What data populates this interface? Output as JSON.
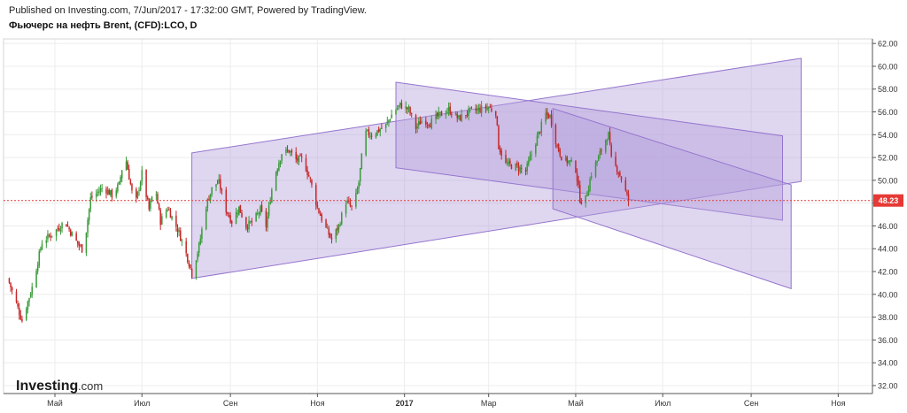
{
  "header": {
    "published": "Published on Investing.com, 7/Jun/2017 - 17:32:00 GMT, Powered by TradingView.",
    "title": "Фьючерс на нефть Brent, (CFD):LCO, D"
  },
  "watermark": {
    "brand": "Investing",
    "suffix": ".com"
  },
  "colors": {
    "up": "#3a9a3a",
    "down": "#c62828",
    "channel_line": "#9575cd",
    "channel_fill": "#b39ddb",
    "last_price": "#e53935",
    "grid": "#ececec",
    "axis": "#555555"
  },
  "chart_data": {
    "type": "candlestick",
    "title": "Фьючерс на нефть Brent, (CFD):LCO, D",
    "x_ticks": [
      "Май",
      "Июл",
      "Сен",
      "Ноя",
      "2017",
      "Мар",
      "Май",
      "Июл",
      "Сен",
      "Ноя"
    ],
    "y_ticks": [
      "32.00",
      "34.00",
      "36.00",
      "38.00",
      "40.00",
      "42.00",
      "44.00",
      "46.00",
      "48.00",
      "50.00",
      "52.00",
      "54.00",
      "56.00",
      "58.00",
      "60.00",
      "62.00"
    ],
    "ylim": [
      31.3,
      62.4
    ],
    "xlim": [
      "2016-03-26",
      "2017-11-25"
    ],
    "last_price": "48.23",
    "grid": true,
    "path": [
      [
        "2016-03-29",
        41.4
      ],
      [
        "2016-04-08",
        37.7
      ],
      [
        "2016-04-15",
        40.6
      ],
      [
        "2016-04-22",
        44.6
      ],
      [
        "2016-05-01",
        45.5
      ],
      [
        "2016-05-08",
        46.4
      ],
      [
        "2016-05-15",
        44.8
      ],
      [
        "2016-05-21",
        43.8
      ],
      [
        "2016-05-26",
        48.4
      ],
      [
        "2016-06-04",
        49.4
      ],
      [
        "2016-06-10",
        48.7
      ],
      [
        "2016-06-15",
        49.6
      ],
      [
        "2016-06-19",
        52.4
      ],
      [
        "2016-06-21",
        51.0
      ],
      [
        "2016-06-26",
        47.6
      ],
      [
        "2016-07-01",
        50.6
      ],
      [
        "2016-07-06",
        47.4
      ],
      [
        "2016-07-10",
        49.6
      ],
      [
        "2016-07-14",
        46.4
      ],
      [
        "2016-07-19",
        47.6
      ],
      [
        "2016-07-27",
        45.4
      ],
      [
        "2016-08-03",
        42.8
      ],
      [
        "2016-08-05",
        41.8
      ],
      [
        "2016-08-10",
        44.2
      ],
      [
        "2016-08-15",
        47.8
      ],
      [
        "2016-08-20",
        49.6
      ],
      [
        "2016-08-24",
        49.8
      ],
      [
        "2016-08-29",
        47.4
      ],
      [
        "2016-09-02",
        46.4
      ],
      [
        "2016-09-07",
        47.6
      ],
      [
        "2016-09-12",
        46.0
      ],
      [
        "2016-09-17",
        46.4
      ],
      [
        "2016-09-22",
        47.4
      ],
      [
        "2016-09-26",
        46.0
      ],
      [
        "2016-10-01",
        50.0
      ],
      [
        "2016-10-07",
        52.4
      ],
      [
        "2016-10-12",
        52.6
      ],
      [
        "2016-10-17",
        51.8
      ],
      [
        "2016-10-22",
        51.8
      ],
      [
        "2016-10-27",
        50.0
      ],
      [
        "2016-11-01",
        47.6
      ],
      [
        "2016-11-06",
        46.0
      ],
      [
        "2016-11-11",
        44.8
      ],
      [
        "2016-11-16",
        46.0
      ],
      [
        "2016-11-21",
        48.2
      ],
      [
        "2016-11-26",
        47.4
      ],
      [
        "2016-11-30",
        49.8
      ],
      [
        "2016-12-04",
        54.2
      ],
      [
        "2016-12-09",
        54.0
      ],
      [
        "2016-12-14",
        54.4
      ],
      [
        "2016-12-19",
        54.8
      ],
      [
        "2016-12-24",
        56.0
      ],
      [
        "2016-12-29",
        56.6
      ],
      [
        "2017-01-04",
        56.2
      ],
      [
        "2017-01-09",
        54.6
      ],
      [
        "2017-01-14",
        55.4
      ],
      [
        "2017-01-19",
        55.0
      ],
      [
        "2017-01-24",
        55.6
      ],
      [
        "2017-02-01",
        56.2
      ],
      [
        "2017-02-08",
        55.4
      ],
      [
        "2017-02-15",
        56.0
      ],
      [
        "2017-02-22",
        56.2
      ],
      [
        "2017-03-01",
        56.4
      ],
      [
        "2017-03-06",
        56.0
      ],
      [
        "2017-03-08",
        53.0
      ],
      [
        "2017-03-13",
        51.4
      ],
      [
        "2017-03-20",
        51.2
      ],
      [
        "2017-03-27",
        50.8
      ],
      [
        "2017-04-03",
        53.4
      ],
      [
        "2017-04-10",
        55.8
      ],
      [
        "2017-04-13",
        55.6
      ],
      [
        "2017-04-18",
        53.0
      ],
      [
        "2017-04-22",
        51.8
      ],
      [
        "2017-04-27",
        51.6
      ],
      [
        "2017-05-01",
        51.0
      ],
      [
        "2017-05-04",
        48.4
      ],
      [
        "2017-05-07",
        47.8
      ],
      [
        "2017-05-12",
        50.6
      ],
      [
        "2017-05-17",
        52.0
      ],
      [
        "2017-05-22",
        53.6
      ],
      [
        "2017-05-24",
        54.0
      ],
      [
        "2017-05-26",
        51.8
      ],
      [
        "2017-05-31",
        50.8
      ],
      [
        "2017-06-03",
        49.8
      ],
      [
        "2017-06-07",
        48.2
      ]
    ],
    "channels": [
      {
        "poly": [
          [
            "2016-08-05",
            52.4
          ],
          [
            "2017-10-06",
            60.7
          ],
          [
            "2017-10-06",
            49.9
          ],
          [
            "2016-08-05",
            41.4
          ]
        ]
      },
      {
        "poly": [
          [
            "2016-12-26",
            58.6
          ],
          [
            "2017-09-23",
            53.9
          ],
          [
            "2017-09-23",
            46.5
          ],
          [
            "2016-12-26",
            51.1
          ]
        ]
      },
      {
        "poly": [
          [
            "2017-04-15",
            56.3
          ],
          [
            "2017-09-29",
            49.6
          ],
          [
            "2017-09-29",
            40.5
          ],
          [
            "2017-04-15",
            47.5
          ]
        ]
      }
    ]
  }
}
